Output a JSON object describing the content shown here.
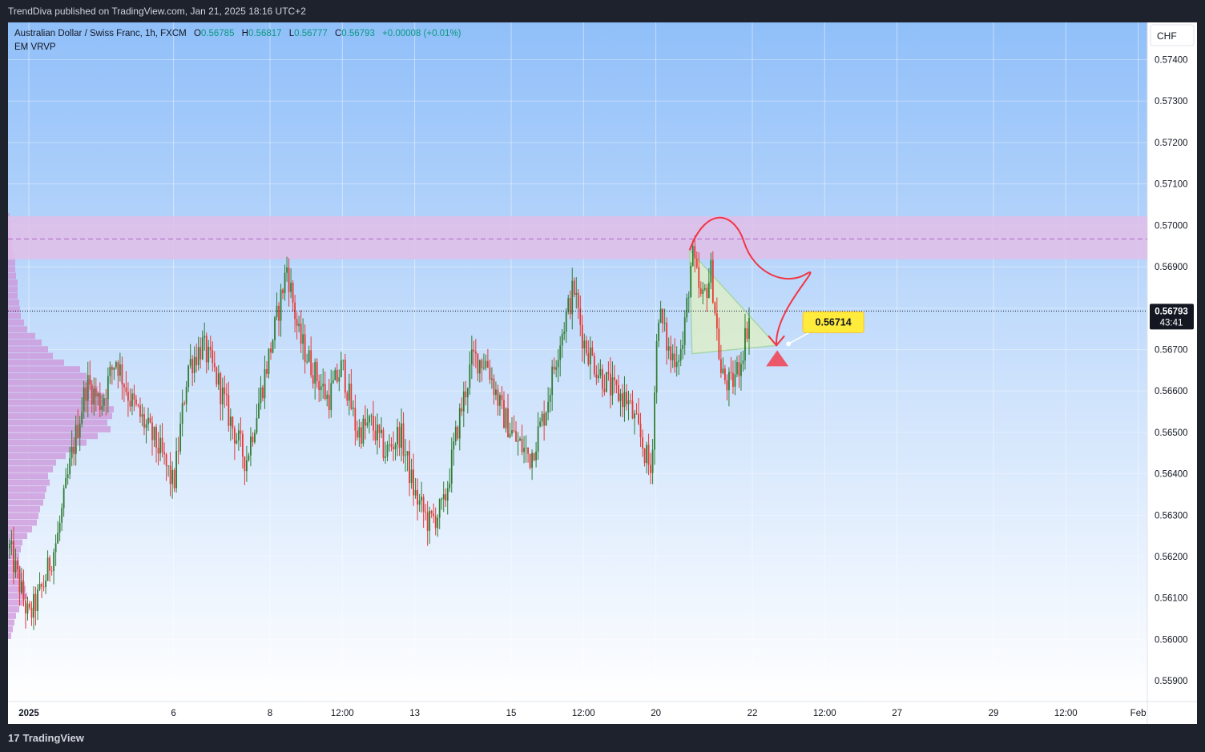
{
  "header": {
    "published_by": "TrendDiva published on TradingView.com, Jan 21, 2025 18:16 UTC+2"
  },
  "legend": {
    "symbol": "Australian Dollar / Swiss Franc, 1h, FXCM",
    "o_label": "O",
    "o_value": "0.56785",
    "h_label": "H",
    "h_value": "0.56817",
    "l_label": "L",
    "l_value": "0.56777",
    "c_label": "C",
    "c_value": "0.56793",
    "change": "+0.00008 (+0.01%)",
    "indicator": "EM VRVP"
  },
  "currency_button": "CHF",
  "price_tag": {
    "price": "0.56793",
    "countdown": "43:41"
  },
  "target_label": "0.56714",
  "footer": {
    "logo_mark": "17",
    "logo_text": "TradingView"
  },
  "colors": {
    "up": "#26a69a",
    "down": "#ef5350",
    "up_body": "#2e7d32",
    "down_body": "#e53935",
    "zone": "#e1bee7",
    "triangle": "#dcedc8",
    "arrow": "#f23645",
    "profile": "#ce93d8",
    "badge": "#ffeb3b",
    "background_top": "#90bff9",
    "background_bottom": "#ffffff"
  },
  "chart_data": {
    "type": "candlestick",
    "y_axis": {
      "min": 0.5585,
      "max": 0.5749,
      "ticks": [
        "0.57400",
        "0.57300",
        "0.57200",
        "0.57100",
        "0.57000",
        "0.56900",
        "0.56800",
        "0.56700",
        "0.56600",
        "0.56500",
        "0.56400",
        "0.56300",
        "0.56200",
        "0.56100",
        "0.56000",
        "0.55900"
      ]
    },
    "x_axis": {
      "ticks": [
        {
          "label": "2025",
          "bold": true,
          "day": 0
        },
        {
          "label": "6",
          "day": 3
        },
        {
          "label": "8",
          "day": 5
        },
        {
          "label": "12:00",
          "day": 6.5
        },
        {
          "label": "13",
          "day": 8
        },
        {
          "label": "15",
          "day": 10
        },
        {
          "label": "12:00",
          "day": 11.5
        },
        {
          "label": "20",
          "day": 13
        },
        {
          "label": "22",
          "day": 15
        },
        {
          "label": "12:00",
          "day": 16.5
        },
        {
          "label": "27",
          "day": 18
        },
        {
          "label": "29",
          "day": 20
        },
        {
          "label": "12:00",
          "day": 21.5
        },
        {
          "label": "Feb",
          "day": 23
        }
      ]
    },
    "last_price": 0.56793,
    "resistance_zone": {
      "low": 0.56918,
      "high": 0.57022,
      "mid": 0.56967
    },
    "pattern_triangle": [
      {
        "day": 13.7,
        "price": 0.5694
      },
      {
        "day": 15.5,
        "price": 0.5671
      },
      {
        "day": 13.75,
        "price": 0.5669
      }
    ],
    "projection_target": 0.56714,
    "path": [
      {
        "day": -0.4,
        "price": 0.5622
      },
      {
        "day": 0.0,
        "price": 0.5605
      },
      {
        "day": 0.3,
        "price": 0.5613
      },
      {
        "day": 0.6,
        "price": 0.5625
      },
      {
        "day": 0.9,
        "price": 0.5645
      },
      {
        "day": 1.2,
        "price": 0.5662
      },
      {
        "day": 1.5,
        "price": 0.5657
      },
      {
        "day": 1.8,
        "price": 0.5668
      },
      {
        "day": 2.1,
        "price": 0.5658
      },
      {
        "day": 2.4,
        "price": 0.5652
      },
      {
        "day": 2.7,
        "price": 0.5646
      },
      {
        "day": 3.0,
        "price": 0.5637
      },
      {
        "day": 3.3,
        "price": 0.5666
      },
      {
        "day": 3.6,
        "price": 0.5671
      },
      {
        "day": 3.9,
        "price": 0.5663
      },
      {
        "day": 4.2,
        "price": 0.5652
      },
      {
        "day": 4.5,
        "price": 0.5643
      },
      {
        "day": 4.8,
        "price": 0.5659
      },
      {
        "day": 5.1,
        "price": 0.5675
      },
      {
        "day": 5.35,
        "price": 0.569
      },
      {
        "day": 5.6,
        "price": 0.5673
      },
      {
        "day": 5.9,
        "price": 0.5665
      },
      {
        "day": 6.2,
        "price": 0.5658
      },
      {
        "day": 6.5,
        "price": 0.5666
      },
      {
        "day": 6.8,
        "price": 0.565
      },
      {
        "day": 7.1,
        "price": 0.5652
      },
      {
        "day": 7.4,
        "price": 0.5645
      },
      {
        "day": 7.7,
        "price": 0.565
      },
      {
        "day": 8.0,
        "price": 0.5635
      },
      {
        "day": 8.3,
        "price": 0.5628
      },
      {
        "day": 8.6,
        "price": 0.5632
      },
      {
        "day": 8.9,
        "price": 0.5652
      },
      {
        "day": 9.2,
        "price": 0.5668
      },
      {
        "day": 9.5,
        "price": 0.5667
      },
      {
        "day": 9.8,
        "price": 0.5655
      },
      {
        "day": 10.1,
        "price": 0.5648
      },
      {
        "day": 10.4,
        "price": 0.5644
      },
      {
        "day": 10.7,
        "price": 0.5655
      },
      {
        "day": 11.0,
        "price": 0.5672
      },
      {
        "day": 11.3,
        "price": 0.5685
      },
      {
        "day": 11.5,
        "price": 0.5672
      },
      {
        "day": 11.8,
        "price": 0.5665
      },
      {
        "day": 12.1,
        "price": 0.566
      },
      {
        "day": 12.4,
        "price": 0.5658
      },
      {
        "day": 12.7,
        "price": 0.5648
      },
      {
        "day": 12.9,
        "price": 0.564
      },
      {
        "day": 13.05,
        "price": 0.568
      },
      {
        "day": 13.3,
        "price": 0.5668
      },
      {
        "day": 13.55,
        "price": 0.567
      },
      {
        "day": 13.75,
        "price": 0.5693
      },
      {
        "day": 13.95,
        "price": 0.5681
      },
      {
        "day": 14.15,
        "price": 0.5689
      },
      {
        "day": 14.35,
        "price": 0.5664
      },
      {
        "day": 14.55,
        "price": 0.5661
      },
      {
        "day": 14.75,
        "price": 0.5667
      },
      {
        "day": 14.95,
        "price": 0.5679
      }
    ],
    "volume_profile_top": 0.5703,
    "volume_profile_bottom": 0.56,
    "volume_profile": [
      2,
      3,
      3,
      4,
      5,
      6,
      8,
      9,
      9,
      10,
      12,
      12,
      12,
      14,
      15,
      16,
      20,
      24,
      34,
      42,
      50,
      56,
      70,
      90,
      98,
      105,
      112,
      120,
      126,
      132,
      130,
      124,
      128,
      112,
      98,
      86,
      72,
      60,
      56,
      50,
      52,
      48,
      46,
      44,
      40,
      38,
      36,
      30,
      24,
      18,
      16,
      14,
      14,
      16,
      18,
      20,
      22,
      24,
      20,
      14,
      10,
      8,
      6,
      4
    ]
  }
}
